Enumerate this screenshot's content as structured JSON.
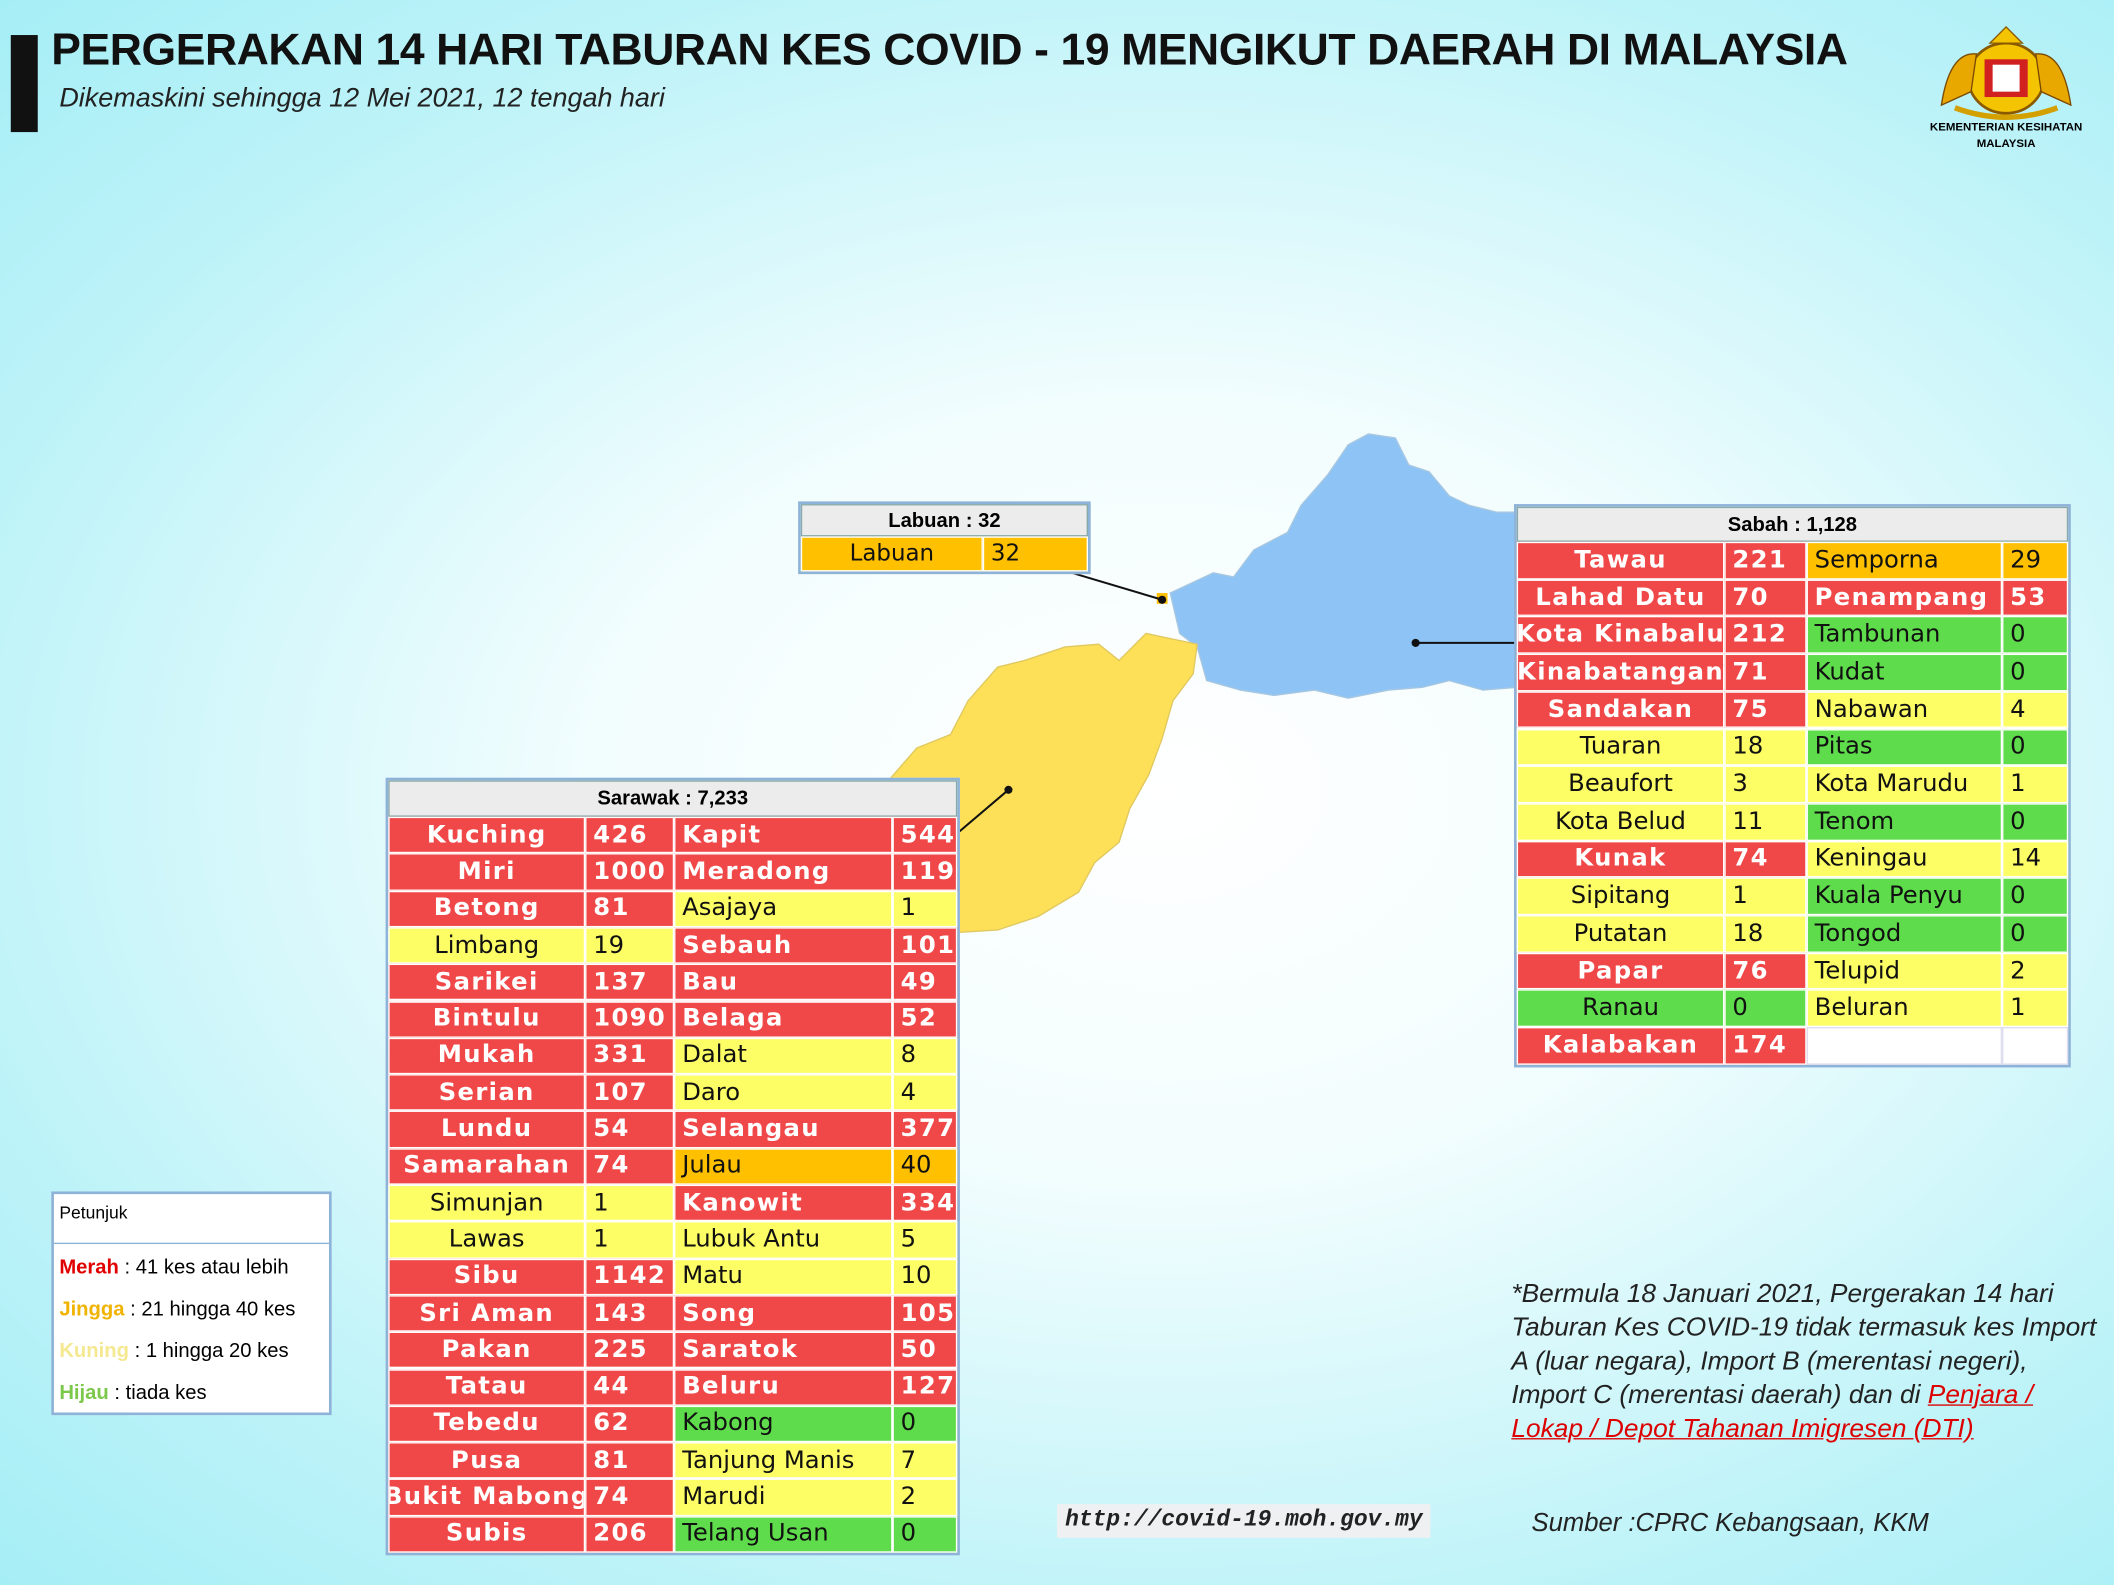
{
  "header": {
    "title": "PERGERAKAN 14 HARI TABURAN KES COVID - 19 MENGIKUT DAERAH DI MALAYSIA",
    "subtitle": "Dikemaskini sehingga 12 Mei 2021, 12 tengah hari",
    "logo_line1": "KEMENTERIAN KESIHATAN",
    "logo_line2": "MALAYSIA"
  },
  "labuan": {
    "title": "Labuan : 32",
    "columns": [
      [
        {
          "name": "Labuan",
          "cases": 32,
          "color": "#ffc000"
        }
      ]
    ]
  },
  "sabah": {
    "title": "Sabah : 1,128",
    "columns": [
      [
        {
          "name": "Tawau",
          "cases": 221,
          "color": "#f04848"
        },
        {
          "name": "Lahad Datu",
          "cases": 70,
          "color": "#f04848"
        },
        {
          "name": "Kota Kinabalu",
          "cases": 212,
          "color": "#f04848"
        },
        {
          "name": "Kinabatangan",
          "cases": 71,
          "color": "#f04848"
        },
        {
          "name": "Sandakan",
          "cases": 75,
          "color": "#f04848"
        },
        {
          "name": "Tuaran",
          "cases": 18,
          "color": "#fdfd66"
        },
        {
          "name": "Beaufort",
          "cases": 3,
          "color": "#fdfd66"
        },
        {
          "name": "Kota Belud",
          "cases": 11,
          "color": "#fdfd66"
        },
        {
          "name": "Kunak",
          "cases": 74,
          "color": "#f04848"
        },
        {
          "name": "Sipitang",
          "cases": 1,
          "color": "#fdfd66"
        },
        {
          "name": "Putatan",
          "cases": 18,
          "color": "#fdfd66"
        },
        {
          "name": "Papar",
          "cases": 76,
          "color": "#f04848"
        },
        {
          "name": "Ranau",
          "cases": 0,
          "color": "#5fdc4c"
        },
        {
          "name": "Kalabakan",
          "cases": 174,
          "color": "#f04848"
        }
      ],
      [
        {
          "name": "Semporna",
          "cases": 29,
          "color": "#ffc000"
        },
        {
          "name": "Penampang",
          "cases": 53,
          "color": "#f04848"
        },
        {
          "name": "Tambunan",
          "cases": 0,
          "color": "#5fdc4c"
        },
        {
          "name": "Kudat",
          "cases": 0,
          "color": "#5fdc4c"
        },
        {
          "name": "Nabawan",
          "cases": 4,
          "color": "#fdfd66"
        },
        {
          "name": "Pitas",
          "cases": 0,
          "color": "#5fdc4c"
        },
        {
          "name": "Kota Marudu",
          "cases": 1,
          "color": "#fdfd66"
        },
        {
          "name": "Tenom",
          "cases": 0,
          "color": "#5fdc4c"
        },
        {
          "name": "Keningau",
          "cases": 14,
          "color": "#fdfd66"
        },
        {
          "name": "Kuala Penyu",
          "cases": 0,
          "color": "#5fdc4c"
        },
        {
          "name": "Tongod",
          "cases": 0,
          "color": "#5fdc4c"
        },
        {
          "name": "Telupid",
          "cases": 2,
          "color": "#fdfd66"
        },
        {
          "name": "Beluran",
          "cases": 1,
          "color": "#fdfd66"
        }
      ]
    ]
  },
  "sarawak": {
    "title": "Sarawak : 7,233",
    "columns": [
      [
        {
          "name": "Kuching",
          "cases": 426,
          "color": "#f04848"
        },
        {
          "name": "Miri",
          "cases": 1000,
          "color": "#f04848"
        },
        {
          "name": "Betong",
          "cases": 81,
          "color": "#f04848"
        },
        {
          "name": "Limbang",
          "cases": 19,
          "color": "#fdfd66"
        },
        {
          "name": "Sarikei",
          "cases": 137,
          "color": "#f04848"
        },
        {
          "name": "Bintulu",
          "cases": 1090,
          "color": "#f04848"
        },
        {
          "name": "Mukah",
          "cases": 331,
          "color": "#f04848"
        },
        {
          "name": "Serian",
          "cases": 107,
          "color": "#f04848"
        },
        {
          "name": "Lundu",
          "cases": 54,
          "color": "#f04848"
        },
        {
          "name": "Samarahan",
          "cases": 74,
          "color": "#f04848"
        },
        {
          "name": "Simunjan",
          "cases": 1,
          "color": "#fdfd66"
        },
        {
          "name": "Lawas",
          "cases": 1,
          "color": "#fdfd66"
        },
        {
          "name": "Sibu",
          "cases": 1142,
          "color": "#f04848"
        },
        {
          "name": "Sri Aman",
          "cases": 143,
          "color": "#f04848"
        },
        {
          "name": "Pakan",
          "cases": 225,
          "color": "#f04848"
        },
        {
          "name": "Tatau",
          "cases": 44,
          "color": "#f04848"
        },
        {
          "name": "Tebedu",
          "cases": 62,
          "color": "#f04848"
        },
        {
          "name": "Pusa",
          "cases": 81,
          "color": "#f04848"
        },
        {
          "name": "Bukit Mabong",
          "cases": 74,
          "color": "#f04848"
        },
        {
          "name": "Subis",
          "cases": 206,
          "color": "#f04848"
        }
      ],
      [
        {
          "name": "Kapit",
          "cases": 544,
          "color": "#f04848"
        },
        {
          "name": "Meradong",
          "cases": 119,
          "color": "#f04848"
        },
        {
          "name": "Asajaya",
          "cases": 1,
          "color": "#fdfd66"
        },
        {
          "name": "Sebauh",
          "cases": 101,
          "color": "#f04848"
        },
        {
          "name": "Bau",
          "cases": 49,
          "color": "#f04848"
        },
        {
          "name": "Belaga",
          "cases": 52,
          "color": "#f04848"
        },
        {
          "name": "Dalat",
          "cases": 8,
          "color": "#fdfd66"
        },
        {
          "name": "Daro",
          "cases": 4,
          "color": "#fdfd66"
        },
        {
          "name": "Selangau",
          "cases": 377,
          "color": "#f04848"
        },
        {
          "name": "Julau",
          "cases": 40,
          "color": "#ffc000"
        },
        {
          "name": "Kanowit",
          "cases": 334,
          "color": "#f04848"
        },
        {
          "name": "Lubuk Antu",
          "cases": 5,
          "color": "#fdfd66"
        },
        {
          "name": "Matu",
          "cases": 10,
          "color": "#fdfd66"
        },
        {
          "name": "Song",
          "cases": 105,
          "color": "#f04848"
        },
        {
          "name": "Saratok",
          "cases": 50,
          "color": "#f04848"
        },
        {
          "name": "Beluru",
          "cases": 127,
          "color": "#f04848"
        },
        {
          "name": "Kabong",
          "cases": 0,
          "color": "#5fdc4c"
        },
        {
          "name": "Tanjung Manis",
          "cases": 7,
          "color": "#fdfd66"
        },
        {
          "name": "Marudi",
          "cases": 2,
          "color": "#fdfd66"
        },
        {
          "name": "Telang Usan",
          "cases": 0,
          "color": "#5fdc4c"
        }
      ]
    ]
  },
  "legend": {
    "title": "Petunjuk",
    "items": [
      {
        "label": "Merah",
        "text": " : 41 kes atau lebih",
        "color": "#e00000"
      },
      {
        "label": "Jingga",
        "text": " : 21 hingga 40 kes",
        "color": "#f0b400"
      },
      {
        "label": "Kuning",
        "text": " : 1 hingga 20 kes",
        "color": "#f4e890"
      },
      {
        "label": "Hijau",
        "text": " : tiada kes",
        "color": "#7cc84a"
      }
    ]
  },
  "note": {
    "text": "*Bermula 18 Januari 2021, Pergerakan 14 hari Taburan Kes COVID-19 tidak termasuk kes Import A (luar negara), Import B (merentasi negeri), Import C (merentasi daerah) dan di ",
    "link": "Penjara / Lokap / Depot Tahanan Imigresen (DTI)"
  },
  "url": "http://covid-19.moh.gov.my",
  "source": "Sumber :CPRC Kebangsaan,  KKM"
}
